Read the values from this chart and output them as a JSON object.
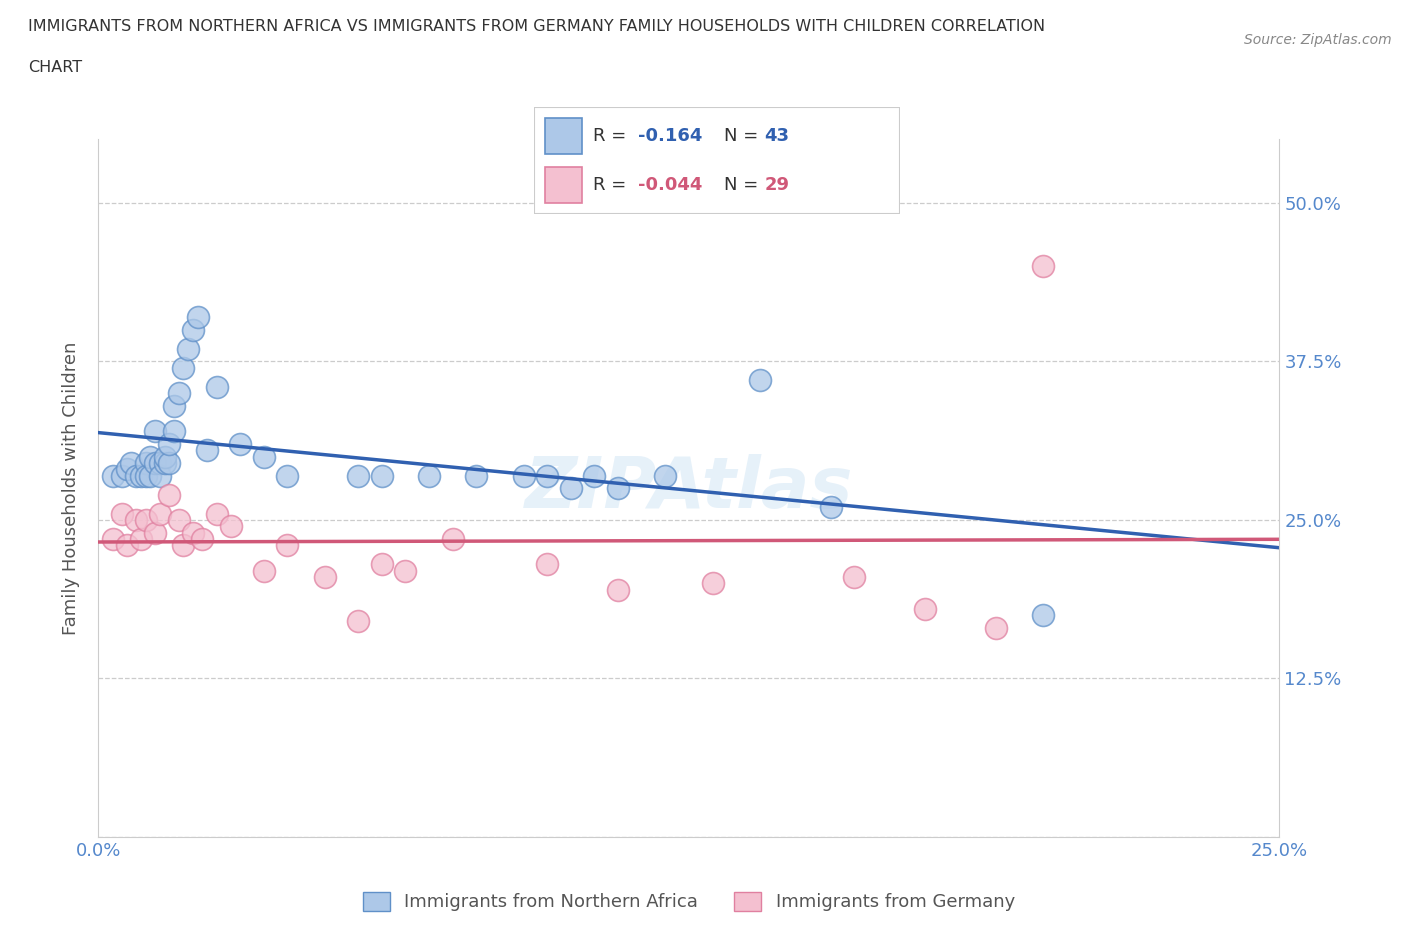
{
  "title_line1": "IMMIGRANTS FROM NORTHERN AFRICA VS IMMIGRANTS FROM GERMANY FAMILY HOUSEHOLDS WITH CHILDREN CORRELATION",
  "title_line2": "CHART",
  "source": "Source: ZipAtlas.com",
  "ylabel": "Family Households with Children",
  "xlim": [
    0.0,
    0.25
  ],
  "ylim": [
    0.0,
    0.55
  ],
  "xticks": [
    0.0,
    0.05,
    0.1,
    0.15,
    0.2,
    0.25
  ],
  "yticks": [
    0.0,
    0.125,
    0.25,
    0.375,
    0.5
  ],
  "blue_R": -0.164,
  "blue_N": 43,
  "pink_R": -0.044,
  "pink_N": 29,
  "blue_color": "#adc8e8",
  "blue_edge_color": "#6090c8",
  "blue_line_color": "#3060b0",
  "pink_color": "#f4c0d0",
  "pink_edge_color": "#e080a0",
  "pink_line_color": "#d05878",
  "watermark": "ZIPAtlas",
  "blue_scatter_x": [
    0.003,
    0.005,
    0.006,
    0.007,
    0.008,
    0.009,
    0.01,
    0.01,
    0.011,
    0.011,
    0.012,
    0.012,
    0.013,
    0.013,
    0.014,
    0.014,
    0.015,
    0.015,
    0.016,
    0.016,
    0.017,
    0.018,
    0.019,
    0.02,
    0.021,
    0.023,
    0.025,
    0.03,
    0.035,
    0.04,
    0.055,
    0.06,
    0.07,
    0.08,
    0.09,
    0.095,
    0.1,
    0.105,
    0.11,
    0.12,
    0.14,
    0.155,
    0.2
  ],
  "blue_scatter_y": [
    0.285,
    0.285,
    0.29,
    0.295,
    0.285,
    0.285,
    0.295,
    0.285,
    0.285,
    0.3,
    0.295,
    0.32,
    0.295,
    0.285,
    0.295,
    0.3,
    0.295,
    0.31,
    0.32,
    0.34,
    0.35,
    0.37,
    0.385,
    0.4,
    0.41,
    0.305,
    0.355,
    0.31,
    0.3,
    0.285,
    0.285,
    0.285,
    0.285,
    0.285,
    0.285,
    0.285,
    0.275,
    0.285,
    0.275,
    0.285,
    0.36,
    0.26,
    0.175
  ],
  "pink_scatter_x": [
    0.003,
    0.005,
    0.006,
    0.008,
    0.009,
    0.01,
    0.012,
    0.013,
    0.015,
    0.017,
    0.018,
    0.02,
    0.022,
    0.025,
    0.028,
    0.035,
    0.04,
    0.048,
    0.055,
    0.06,
    0.065,
    0.075,
    0.095,
    0.11,
    0.13,
    0.16,
    0.175,
    0.19,
    0.2
  ],
  "pink_scatter_y": [
    0.235,
    0.255,
    0.23,
    0.25,
    0.235,
    0.25,
    0.24,
    0.255,
    0.27,
    0.25,
    0.23,
    0.24,
    0.235,
    0.255,
    0.245,
    0.21,
    0.23,
    0.205,
    0.17,
    0.215,
    0.21,
    0.235,
    0.215,
    0.195,
    0.2,
    0.205,
    0.18,
    0.165,
    0.45
  ],
  "legend_label_blue": "Immigrants from Northern Africa",
  "legend_label_pink": "Immigrants from Germany",
  "grid_color": "#cccccc",
  "background_color": "#ffffff",
  "title_color": "#333333",
  "tick_label_color": "#5588cc"
}
